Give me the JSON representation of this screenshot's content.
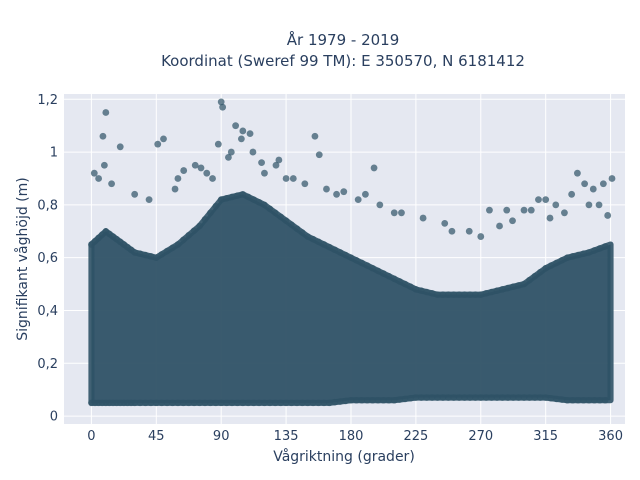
{
  "chart_data": {
    "type": "scatter",
    "title": "År 1979 - 2019",
    "subtitle": "Koordinat (Sweref 99 TM): E 350570, N 6181412",
    "xlabel": "Vågriktning (grader)",
    "ylabel": "Signifikant våghöjd (m)",
    "xlim": [
      -19,
      370
    ],
    "ylim": [
      -0.03,
      1.22
    ],
    "x_ticks": [
      0,
      45,
      90,
      135,
      180,
      225,
      270,
      315,
      360
    ],
    "x_tick_labels": [
      "0",
      "45",
      "90",
      "135",
      "180",
      "225",
      "270",
      "315",
      "360"
    ],
    "y_ticks": [
      0,
      0.2,
      0.4,
      0.6,
      0.8,
      1,
      1.2
    ],
    "y_tick_labels": [
      "0",
      "0,2",
      "0,4",
      "0,6",
      "0,8",
      "1",
      "1,2"
    ],
    "grid": true,
    "marker_color": "#2f5266",
    "marker_opacity": 0.7,
    "background_color": "#e5e8f1",
    "series": [
      {
        "x": [
          90,
          91,
          105,
          10,
          100,
          104,
          8,
          155,
          110,
          20,
          158,
          46,
          50,
          196,
          337,
          361,
          342,
          9,
          2,
          64,
          72,
          97,
          120,
          135,
          148,
          163,
          170,
          185,
          200,
          210,
          230,
          245,
          262,
          276,
          288,
          300,
          310,
          318,
          328,
          345,
          352,
          358,
          5,
          14,
          30,
          40,
          58,
          80,
          84,
          118,
          128,
          140,
          175,
          190,
          215,
          250,
          270,
          283,
          292,
          305,
          315,
          322,
          333,
          348,
          355,
          60,
          76,
          88,
          95,
          112,
          130
        ],
        "y": [
          1.19,
          1.17,
          1.08,
          1.15,
          1.1,
          1.05,
          1.06,
          1.06,
          1.07,
          1.02,
          0.99,
          1.03,
          1.05,
          0.94,
          0.92,
          0.9,
          0.88,
          0.95,
          0.92,
          0.93,
          0.95,
          1.0,
          0.92,
          0.9,
          0.88,
          0.86,
          0.84,
          0.82,
          0.8,
          0.77,
          0.75,
          0.73,
          0.7,
          0.78,
          0.78,
          0.78,
          0.82,
          0.75,
          0.77,
          0.8,
          0.8,
          0.76,
          0.9,
          0.88,
          0.84,
          0.82,
          0.86,
          0.92,
          0.9,
          0.96,
          0.95,
          0.9,
          0.85,
          0.84,
          0.77,
          0.7,
          0.68,
          0.72,
          0.74,
          0.78,
          0.82,
          0.8,
          0.84,
          0.86,
          0.88,
          0.9,
          0.94,
          1.03,
          0.98,
          1.0,
          0.97
        ]
      }
    ],
    "dense_band": {
      "x": [
        0,
        10,
        20,
        30,
        45,
        60,
        75,
        90,
        105,
        120,
        135,
        150,
        165,
        180,
        195,
        210,
        225,
        240,
        255,
        270,
        285,
        300,
        315,
        330,
        345,
        360
      ],
      "y_min": [
        0.05,
        0.05,
        0.05,
        0.05,
        0.05,
        0.05,
        0.05,
        0.05,
        0.05,
        0.05,
        0.05,
        0.05,
        0.05,
        0.06,
        0.06,
        0.06,
        0.07,
        0.07,
        0.07,
        0.07,
        0.07,
        0.07,
        0.07,
        0.06,
        0.06,
        0.06
      ],
      "y_max": [
        0.65,
        0.7,
        0.66,
        0.62,
        0.6,
        0.65,
        0.72,
        0.82,
        0.84,
        0.8,
        0.74,
        0.68,
        0.64,
        0.6,
        0.56,
        0.52,
        0.48,
        0.46,
        0.46,
        0.46,
        0.48,
        0.5,
        0.56,
        0.6,
        0.62,
        0.65
      ]
    }
  }
}
